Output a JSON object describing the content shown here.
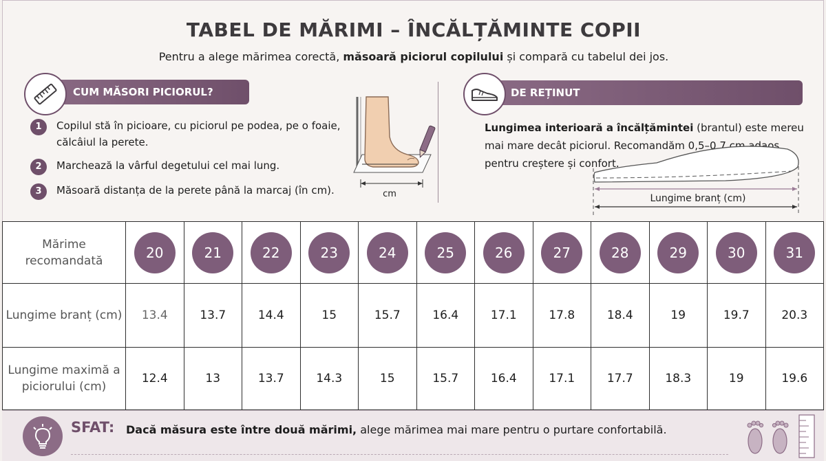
{
  "header": {
    "title": "TABEL DE MĂRIMI – ÎNCĂLȚĂMINTE COPII",
    "subtitle_pre": "Pentru a alege mărimea corectă, ",
    "subtitle_bold": "măsoară piciorul copilului",
    "subtitle_post": " și compară cu tabelul dei jos."
  },
  "measure_section": {
    "title": "CUM MĂSORI PICIORUL?",
    "icon": "ruler-icon",
    "steps": [
      {
        "num": "1",
        "text": "Copilul stă în picioare, cu piciorul pe podea, pe o foaie, călcâiul la perete."
      },
      {
        "num": "2",
        "text": "Marchează la vârful degetului cel mai lung."
      },
      {
        "num": "3",
        "text": "Măsoară distanța de la perete până la marcaj (în cm)."
      }
    ],
    "illustration_label": "cm"
  },
  "remember_section": {
    "title": "DE REȚINUT",
    "icon": "shoe-icon",
    "text_bold": "Lungimea interioară a încălțămintei",
    "text_rest": " (brantul) este mereu mai mare decât piciorul. Recomandăm 0,5–0,7 cm adaos pentru creștere și confort.",
    "illustration_label": "Lungime branț (cm)"
  },
  "table": {
    "rows": [
      {
        "label": "Mărime recomandată"
      },
      {
        "label": "Lungime branț (cm)"
      },
      {
        "label": "Lungime maximă a piciorului (cm)"
      }
    ],
    "sizes": [
      "20",
      "21",
      "22",
      "23",
      "24",
      "25",
      "26",
      "27",
      "28",
      "29",
      "30",
      "31"
    ],
    "insole_lengths": [
      "13.4",
      "13.7",
      "14.4",
      "15",
      "15.7",
      "16.4",
      "17.1",
      "17.8",
      "18.4",
      "19",
      "19.7",
      "20.3"
    ],
    "max_foot_lengths": [
      "12.4",
      "13",
      "13.7",
      "14.3",
      "15",
      "15.7",
      "16.4",
      "17.1",
      "17.7",
      "18.3",
      "19",
      "19.6"
    ]
  },
  "tip": {
    "label": "SFAT:",
    "icon": "lightbulb-icon",
    "text_bold": "Dacă măsura este între două mărimi,",
    "text_rest": " alege mărimea mai mare pentru o purtare confortabilă."
  },
  "colors": {
    "accent": "#7e5d7a",
    "banner": "#6f4f6a",
    "background": "#f4f0ee"
  }
}
